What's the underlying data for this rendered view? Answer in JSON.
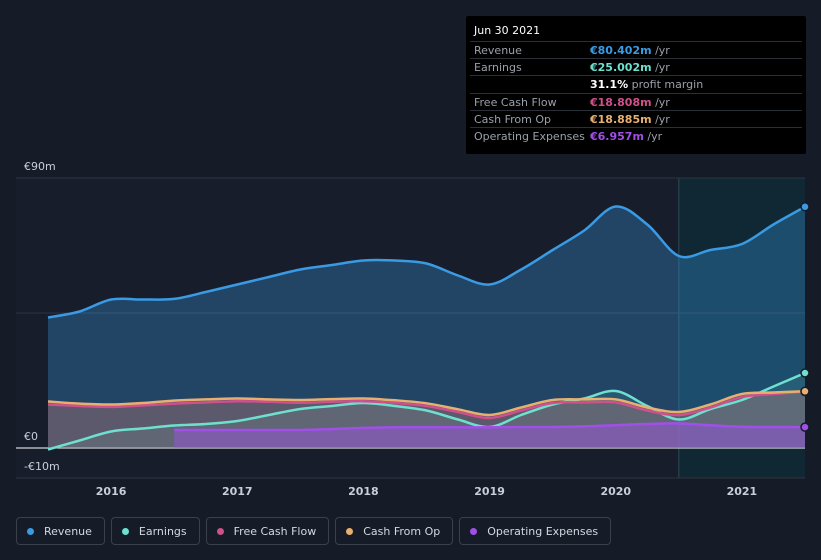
{
  "tooltip": {
    "date": "Jun 30 2021",
    "rows": [
      {
        "label": "Revenue",
        "value": "€80.402m",
        "unit": " /yr",
        "color": "#3a9be5"
      },
      {
        "label": "Earnings",
        "value": "€25.002m",
        "unit": " /yr",
        "color": "#6ee0d0"
      },
      {
        "label": "",
        "value": "31.1%",
        "unit": " profit margin",
        "color": "#ffffff"
      },
      {
        "label": "Free Cash Flow",
        "value": "€18.808m",
        "unit": " /yr",
        "color": "#d0508c"
      },
      {
        "label": "Cash From Op",
        "value": "€18.885m",
        "unit": " /yr",
        "color": "#e8b070"
      },
      {
        "label": "Operating Expenses",
        "value": "€6.957m",
        "unit": " /yr",
        "color": "#a050e8"
      }
    ]
  },
  "legend": [
    {
      "label": "Revenue",
      "color": "#3a9be5"
    },
    {
      "label": "Earnings",
      "color": "#6ee0d0"
    },
    {
      "label": "Free Cash Flow",
      "color": "#d0508c"
    },
    {
      "label": "Cash From Op",
      "color": "#e8b070"
    },
    {
      "label": "Operating Expenses",
      "color": "#a050e8"
    }
  ],
  "chart_data": {
    "type": "area",
    "y_tick_labels": [
      "€90m",
      "€0",
      "-€10m"
    ],
    "ylim": [
      -10,
      90
    ],
    "xlim": [
      2015.5,
      2021.5
    ],
    "x_ticks": [
      2016,
      2017,
      2018,
      2019,
      2020,
      2021
    ],
    "x_tick_labels": [
      "2016",
      "2017",
      "2018",
      "2019",
      "2020",
      "2021"
    ],
    "grid": "horizontal",
    "legend_position": "bottom",
    "highlight_start": 2020.5,
    "series": [
      {
        "name": "Revenue",
        "color": "#3a9be5",
        "x": [
          2015.5,
          2015.75,
          2016.0,
          2016.25,
          2016.5,
          2016.75,
          2017.0,
          2017.25,
          2017.5,
          2017.75,
          2018.0,
          2018.25,
          2018.5,
          2018.75,
          2019.0,
          2019.25,
          2019.5,
          2019.75,
          2020.0,
          2020.25,
          2020.5,
          2020.75,
          2021.0,
          2021.25,
          2021.5
        ],
        "y": [
          43.5,
          45.5,
          49.5,
          49.5,
          49.7,
          52.0,
          54.5,
          57.0,
          59.5,
          61.0,
          62.5,
          62.5,
          61.5,
          57.5,
          54.5,
          59.5,
          66.0,
          72.5,
          80.5,
          74.5,
          64.0,
          66.0,
          68.0,
          74.5,
          80.4
        ]
      },
      {
        "name": "Earnings",
        "color": "#6ee0d0",
        "x": [
          2015.5,
          2015.75,
          2016.0,
          2016.25,
          2016.5,
          2016.75,
          2017.0,
          2017.25,
          2017.5,
          2017.75,
          2018.0,
          2018.25,
          2018.5,
          2018.75,
          2019.0,
          2019.25,
          2019.5,
          2019.75,
          2020.0,
          2020.25,
          2020.5,
          2020.75,
          2021.0,
          2021.25,
          2021.5
        ],
        "y": [
          -0.5,
          2.5,
          5.5,
          6.5,
          7.5,
          8.0,
          9.0,
          11.0,
          13.0,
          14.0,
          15.0,
          14.0,
          12.5,
          9.5,
          7.0,
          11.0,
          14.5,
          16.5,
          19.0,
          14.0,
          9.5,
          13.0,
          16.0,
          20.5,
          25.0
        ]
      },
      {
        "name": "Free Cash Flow",
        "color": "#d0508c",
        "x": [
          2015.5,
          2015.75,
          2016.0,
          2016.25,
          2016.5,
          2016.75,
          2017.0,
          2017.25,
          2017.5,
          2017.75,
          2018.0,
          2018.25,
          2018.5,
          2018.75,
          2019.0,
          2019.25,
          2019.5,
          2019.75,
          2020.0,
          2020.25,
          2020.5,
          2020.75,
          2021.0,
          2021.25,
          2021.5
        ],
        "y": [
          14.5,
          14.0,
          13.7,
          14.2,
          14.8,
          15.2,
          15.6,
          15.4,
          15.1,
          15.4,
          15.6,
          15.0,
          14.0,
          12.0,
          10.0,
          12.5,
          15.0,
          15.2,
          15.2,
          12.5,
          11.0,
          13.5,
          17.0,
          18.0,
          18.8
        ]
      },
      {
        "name": "Cash From Op",
        "color": "#e8b070",
        "x": [
          2015.5,
          2015.75,
          2016.0,
          2016.25,
          2016.5,
          2016.75,
          2017.0,
          2017.25,
          2017.5,
          2017.75,
          2018.0,
          2018.25,
          2018.5,
          2018.75,
          2019.0,
          2019.25,
          2019.5,
          2019.75,
          2020.0,
          2020.25,
          2020.5,
          2020.75,
          2021.0,
          2021.25,
          2021.5
        ],
        "y": [
          15.5,
          14.8,
          14.5,
          15.0,
          15.8,
          16.2,
          16.5,
          16.2,
          16.0,
          16.3,
          16.5,
          15.9,
          14.9,
          12.9,
          11.0,
          13.5,
          16.0,
          16.2,
          16.2,
          13.5,
          12.0,
          14.5,
          18.0,
          18.5,
          18.9
        ]
      },
      {
        "name": "Operating Expenses",
        "color": "#a050e8",
        "x": [
          2016.5,
          2016.75,
          2017.0,
          2017.25,
          2017.5,
          2017.75,
          2018.0,
          2018.25,
          2018.5,
          2018.75,
          2019.0,
          2019.25,
          2019.5,
          2019.75,
          2020.0,
          2020.25,
          2020.5,
          2020.75,
          2021.0,
          2021.25,
          2021.5
        ],
        "y": [
          6.0,
          6.0,
          6.0,
          6.0,
          6.0,
          6.3,
          6.7,
          6.9,
          6.9,
          6.9,
          6.9,
          7.0,
          7.0,
          7.2,
          7.6,
          8.0,
          8.2,
          7.6,
          7.1,
          7.0,
          6.96
        ]
      }
    ]
  }
}
